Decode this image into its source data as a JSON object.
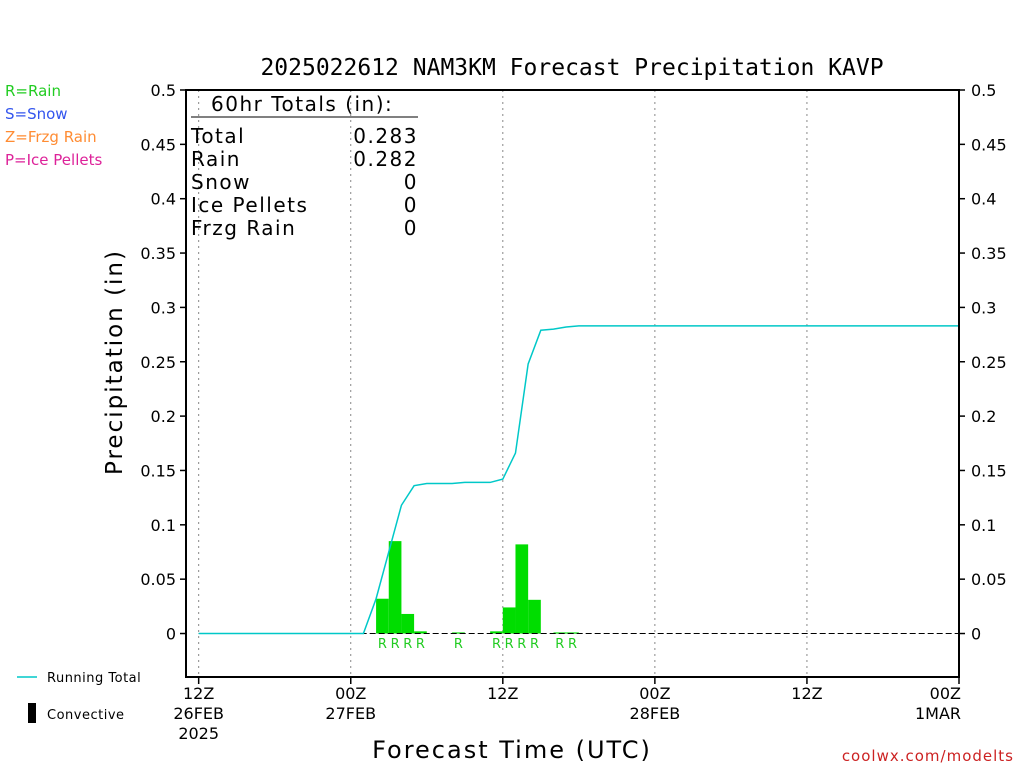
{
  "chart_data": {
    "type": "bar",
    "title": "2025022612 NAM3KM Forecast Precipitation KAVP",
    "xlabel": "Forecast Time (UTC)",
    "ylabel": "Precipitation (in)",
    "ylim": [
      -0.04,
      0.5
    ],
    "y_ticks": [
      0,
      0.05,
      0.1,
      0.15,
      0.2,
      0.25,
      0.3,
      0.35,
      0.4,
      0.45,
      0.5
    ],
    "xlim_hours": [
      -1,
      60
    ],
    "x_ticks": [
      {
        "hour": 0,
        "line1": "12Z",
        "line2": "26FEB",
        "line3": "2025"
      },
      {
        "hour": 12,
        "line1": "00Z",
        "line2": "27FEB",
        "line3": ""
      },
      {
        "hour": 24,
        "line1": "12Z",
        "line2": "",
        "line3": ""
      },
      {
        "hour": 36,
        "line1": "00Z",
        "line2": "28FEB",
        "line3": ""
      },
      {
        "hour": 48,
        "line1": "12Z",
        "line2": "",
        "line3": ""
      },
      {
        "hour": 60,
        "line1": "00Z",
        "line2": "1MAR",
        "line3": ""
      }
    ],
    "grid": "dotted vertical lines at 12-hour ticks",
    "hourly_precip": [
      {
        "hour": 15,
        "value": 0.032,
        "type": "R"
      },
      {
        "hour": 16,
        "value": 0.085,
        "type": "R"
      },
      {
        "hour": 17,
        "value": 0.018,
        "type": "R"
      },
      {
        "hour": 18,
        "value": 0.002,
        "type": "R"
      },
      {
        "hour": 21,
        "value": 0.001,
        "type": "R"
      },
      {
        "hour": 24,
        "value": 0.002,
        "type": "R"
      },
      {
        "hour": 25,
        "value": 0.024,
        "type": "R"
      },
      {
        "hour": 26,
        "value": 0.082,
        "type": "R"
      },
      {
        "hour": 27,
        "value": 0.031,
        "type": "R"
      },
      {
        "hour": 29,
        "value": 0.001,
        "type": "R"
      },
      {
        "hour": 30,
        "value": 0.001,
        "type": "R"
      }
    ],
    "running_total": {
      "name": "Running Total",
      "x": [
        0,
        13,
        14,
        15,
        16,
        17,
        18,
        19,
        20,
        21,
        22,
        23,
        24,
        25,
        26,
        27,
        28,
        29,
        30,
        31,
        40,
        50,
        55,
        60
      ],
      "y": [
        0,
        0,
        0.032,
        0.075,
        0.118,
        0.136,
        0.138,
        0.138,
        0.138,
        0.139,
        0.139,
        0.139,
        0.142,
        0.166,
        0.248,
        0.279,
        0.28,
        0.282,
        0.283,
        0.283,
        0.283,
        0.283,
        0.283,
        0.283
      ]
    },
    "totals_box": {
      "heading": "60hr Totals (in):",
      "rows": [
        {
          "label": "Total",
          "value": "0.283"
        },
        {
          "label": "Rain",
          "value": "0.282"
        },
        {
          "label": "Snow",
          "value": "0"
        },
        {
          "label": "Ice Pellets",
          "value": "0"
        },
        {
          "label": "Frzg Rain",
          "value": "0"
        }
      ]
    },
    "type_legend": [
      {
        "text": "R=Rain",
        "color": "#22cc22"
      },
      {
        "text": "S=Snow",
        "color": "#3355ee"
      },
      {
        "text": "Z=Frzg Rain",
        "color": "#ff8c33"
      },
      {
        "text": "P=Ice Pellets",
        "color": "#dd2299"
      }
    ],
    "series_legend": [
      {
        "text": "Running Total",
        "color": "#00c8c8"
      },
      {
        "text": "Convective",
        "color": "#000000"
      }
    ],
    "credit": "coolwx.com/modelts",
    "colors": {
      "bar": "#00dd00",
      "line": "#00c8c8",
      "rain_label": "#22cc22",
      "credit": "#cc2222"
    }
  }
}
